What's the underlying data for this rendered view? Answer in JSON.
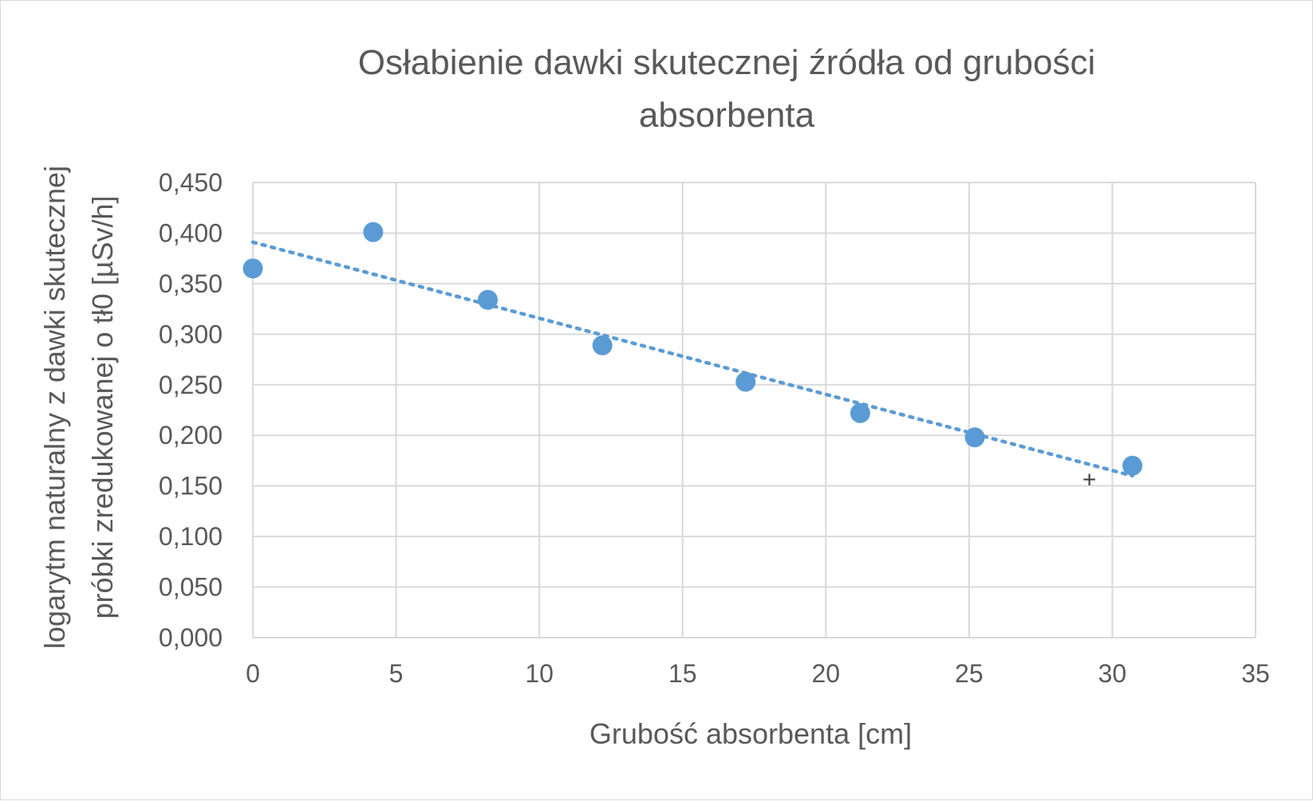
{
  "chart_data": {
    "type": "scatter",
    "title_lines": [
      "Osłabienie dawki skutecznej źródła od grubości",
      "absorbenta"
    ],
    "xlabel": "Grubość absorbenta [cm]",
    "ylabel_lines": [
      "logarytm naturalny z dawki skutecznej",
      "próbki zredukowanej o tł0 [µSv/h]"
    ],
    "xlim": [
      0,
      35
    ],
    "ylim": [
      0,
      0.45
    ],
    "x_ticks": [
      0,
      5,
      10,
      15,
      20,
      25,
      30,
      35
    ],
    "x_tick_labels": [
      "0",
      "5",
      "10",
      "15",
      "20",
      "25",
      "30",
      "35"
    ],
    "y_ticks": [
      0,
      0.05,
      0.1,
      0.15,
      0.2,
      0.25,
      0.3,
      0.35,
      0.4,
      0.45
    ],
    "y_tick_labels": [
      "0,000",
      "0,050",
      "0,100",
      "0,150",
      "0,200",
      "0,250",
      "0,300",
      "0,350",
      "0,400",
      "0,450"
    ],
    "grid": true,
    "series": [
      {
        "marker": "circle",
        "color": "#5b9bd5",
        "points": [
          {
            "x": 0,
            "y": 0.365
          },
          {
            "x": 4.2,
            "y": 0.401
          },
          {
            "x": 8.2,
            "y": 0.334
          },
          {
            "x": 12.2,
            "y": 0.289
          },
          {
            "x": 17.2,
            "y": 0.253
          },
          {
            "x": 21.2,
            "y": 0.222
          },
          {
            "x": 25.2,
            "y": 0.198
          },
          {
            "x": 30.7,
            "y": 0.17
          }
        ]
      }
    ],
    "trendline": {
      "type": "linear",
      "style": "dotted",
      "color": "#5b9bd5",
      "x_range": [
        0,
        30.7
      ],
      "y_start": 0.391,
      "y_end": 0.16
    },
    "annotation_marker": {
      "symbol": "+",
      "x": 29.2,
      "y": 0.158
    }
  }
}
